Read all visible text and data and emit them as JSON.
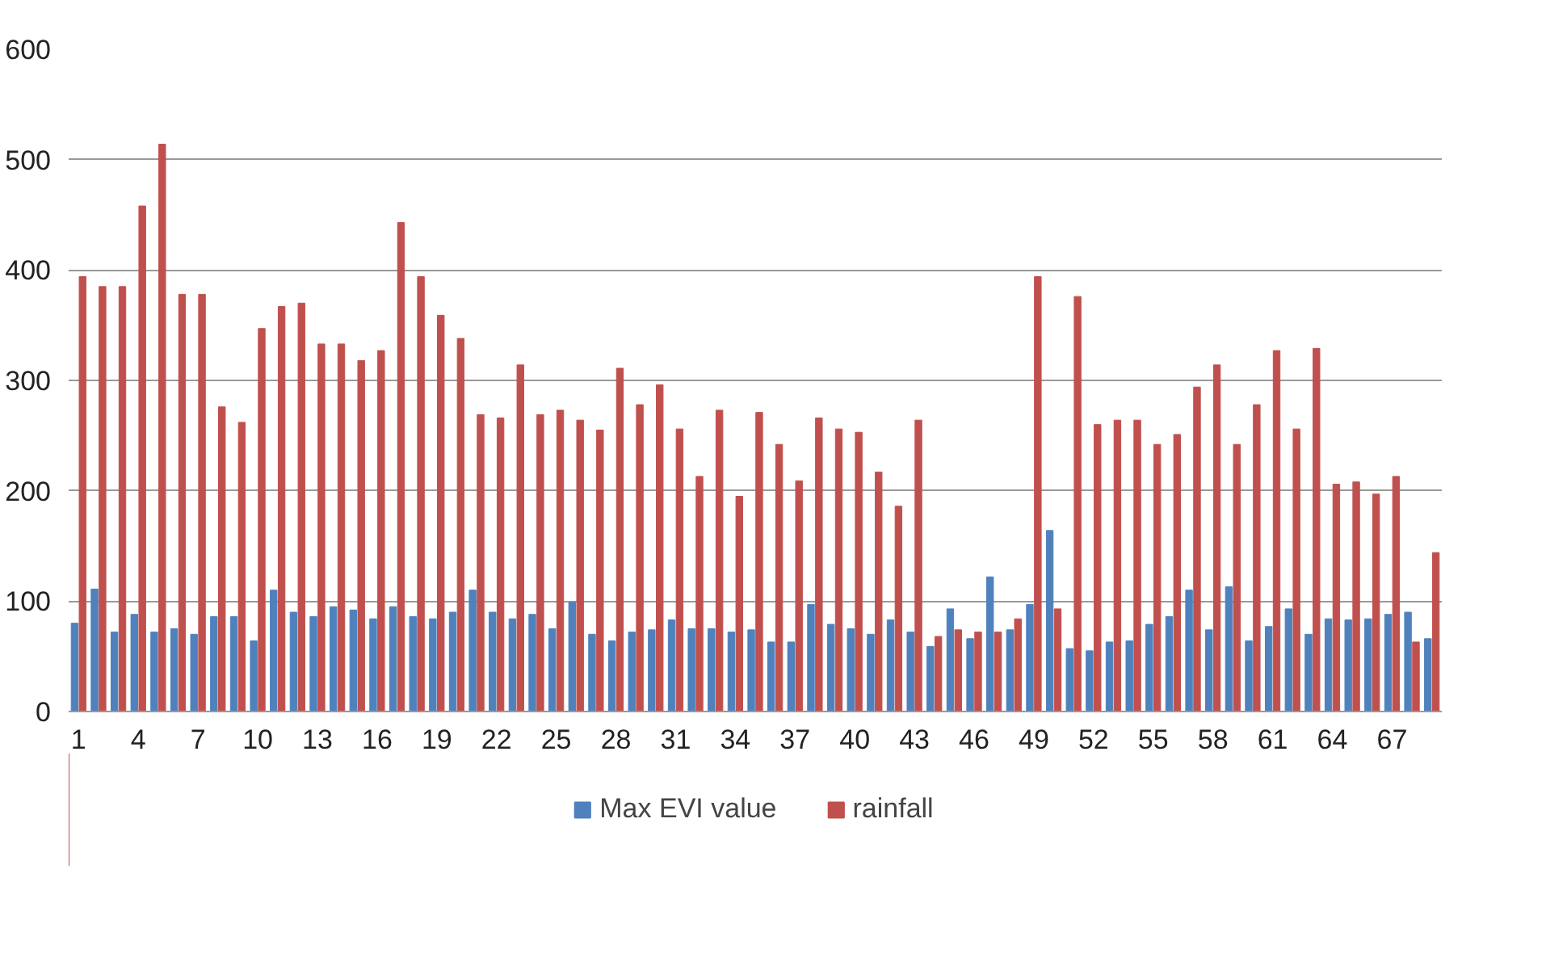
{
  "chart_data": {
    "type": "bar",
    "categories": [
      "1",
      null,
      null,
      "4",
      null,
      null,
      "7",
      null,
      null,
      "10",
      null,
      null,
      "13",
      null,
      null,
      "16",
      null,
      null,
      "19",
      null,
      null,
      "22",
      null,
      null,
      "25",
      null,
      null,
      "28",
      null,
      null,
      "31",
      null,
      null,
      "34",
      null,
      null,
      "37",
      null,
      null,
      "40",
      null,
      null,
      "43",
      null,
      null,
      "46",
      null,
      null,
      "49",
      null,
      null,
      "52",
      null,
      null,
      "55",
      null,
      null,
      "58",
      null,
      null,
      "61",
      null,
      null,
      "64",
      null,
      null,
      "67",
      null,
      null
    ],
    "series": [
      {
        "name": "Max EVI value",
        "color": "#4f81bd",
        "values": [
          80,
          111,
          72,
          88,
          72,
          75,
          70,
          86,
          86,
          64,
          110,
          90,
          86,
          95,
          92,
          84,
          95,
          86,
          84,
          90,
          110,
          90,
          84,
          88,
          75,
          99,
          70,
          64,
          72,
          74,
          83,
          75,
          75,
          72,
          74,
          63,
          63,
          97,
          79,
          75,
          70,
          83,
          72,
          59,
          93,
          66,
          122,
          74,
          97,
          164,
          57,
          55,
          63,
          64,
          79,
          86,
          110,
          74,
          113,
          64,
          77,
          93,
          70,
          84,
          83,
          84,
          88,
          90,
          66
        ]
      },
      {
        "name": "rainfall",
        "color": "#c0504d",
        "values": [
          394,
          385,
          385,
          458,
          514,
          378,
          378,
          276,
          262,
          347,
          367,
          370,
          333,
          333,
          318,
          327,
          443,
          394,
          359,
          338,
          269,
          266,
          314,
          269,
          273,
          264,
          255,
          311,
          278,
          296,
          256,
          213,
          273,
          195,
          271,
          242,
          209,
          266,
          256,
          253,
          217,
          186,
          264,
          68,
          74,
          72,
          72,
          84,
          394,
          93,
          376,
          260,
          264,
          264,
          242,
          251,
          294,
          314,
          242,
          278,
          327,
          256,
          329,
          206,
          208,
          197,
          213,
          63,
          144
        ]
      }
    ],
    "ylim": [
      0,
      600
    ],
    "yticks": [
      0,
      100,
      200,
      300,
      400,
      500,
      600
    ],
    "grid": "y",
    "legend": "bottom"
  }
}
